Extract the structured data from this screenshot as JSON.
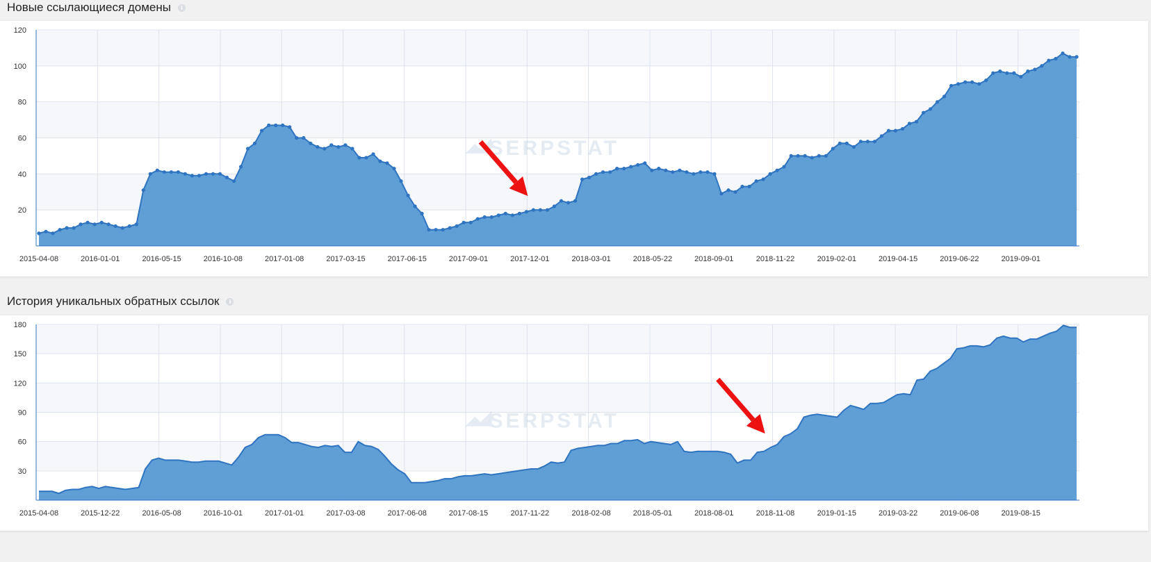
{
  "panels": [
    {
      "title": "Новые ссылающиеся домены",
      "info_icon": "info-icon"
    },
    {
      "title": "История уникальных обратных ссылок",
      "info_icon": "info-icon"
    }
  ],
  "watermark": "SERPSTAT",
  "colors": {
    "area": "#5b9bd5",
    "line": "#2f74c0",
    "arrow": "#ee1111",
    "grid": "#dde3ee"
  },
  "chart_data": [
    {
      "type": "area",
      "markers": true,
      "ylim": [
        0,
        120
      ],
      "yticks": [
        20,
        40,
        60,
        80,
        100,
        120
      ],
      "xticks": [
        "2015-04-08",
        "2016-01-01",
        "2016-05-15",
        "2016-10-08",
        "2017-01-08",
        "2017-03-15",
        "2017-06-15",
        "2017-09-01",
        "2017-12-01",
        "2018-03-01",
        "2018-05-22",
        "2018-09-01",
        "2018-11-22",
        "2019-02-01",
        "2019-04-15",
        "2019-06-22",
        "2019-09-01"
      ],
      "grid": true,
      "annotation": {
        "type": "arrow",
        "points_to_index": 71
      },
      "values": [
        7,
        8,
        7,
        9,
        10,
        10,
        12,
        13,
        12,
        13,
        12,
        11,
        10,
        11,
        12,
        31,
        40,
        42,
        41,
        41,
        41,
        40,
        39,
        39,
        40,
        40,
        40,
        38,
        36,
        44,
        54,
        57,
        64,
        67,
        67,
        67,
        66,
        60,
        60,
        57,
        55,
        54,
        56,
        55,
        56,
        54,
        49,
        49,
        51,
        47,
        46,
        43,
        36,
        28,
        22,
        18,
        9,
        9,
        9,
        10,
        11,
        13,
        13,
        15,
        16,
        16,
        17,
        18,
        17,
        18,
        19,
        20,
        20,
        20,
        22,
        25,
        24,
        25,
        37,
        38,
        40,
        41,
        41,
        43,
        43,
        44,
        45,
        46,
        42,
        43,
        42,
        41,
        42,
        41,
        40,
        41,
        41,
        40,
        29,
        31,
        30,
        33,
        33,
        36,
        37,
        40,
        42,
        44,
        50,
        50,
        50,
        49,
        50,
        50,
        54,
        57,
        57,
        55,
        58,
        58,
        58,
        61,
        64,
        64,
        65,
        68,
        69,
        74,
        76,
        80,
        83,
        89,
        90,
        91,
        91,
        90,
        92,
        96,
        97,
        96,
        96,
        94,
        97,
        98,
        100,
        103,
        104,
        107,
        105,
        105
      ]
    },
    {
      "type": "area",
      "markers": false,
      "ylim": [
        0,
        180
      ],
      "yticks": [
        30,
        60,
        90,
        120,
        150,
        180
      ],
      "xticks": [
        "2015-04-08",
        "2015-12-22",
        "2016-05-08",
        "2016-10-01",
        "2017-01-01",
        "2017-03-08",
        "2017-06-08",
        "2017-08-15",
        "2017-11-22",
        "2018-02-08",
        "2018-05-01",
        "2018-08-01",
        "2018-11-08",
        "2019-01-15",
        "2019-03-22",
        "2019-06-08",
        "2019-08-15"
      ],
      "grid": true,
      "annotation": {
        "type": "arrow",
        "points_to_index": 110
      },
      "values": [
        9,
        9,
        9,
        7,
        10,
        11,
        11,
        13,
        14,
        12,
        14,
        13,
        12,
        11,
        12,
        13,
        32,
        41,
        43,
        41,
        41,
        41,
        40,
        39,
        39,
        40,
        40,
        40,
        38,
        36,
        44,
        54,
        57,
        64,
        67,
        67,
        67,
        64,
        59,
        59,
        57,
        55,
        54,
        56,
        55,
        56,
        49,
        49,
        60,
        56,
        55,
        52,
        45,
        37,
        31,
        27,
        18,
        18,
        18,
        19,
        20,
        22,
        22,
        24,
        25,
        25,
        26,
        27,
        26,
        27,
        28,
        29,
        30,
        31,
        32,
        32,
        35,
        39,
        38,
        39,
        51,
        53,
        54,
        55,
        56,
        56,
        58,
        58,
        61,
        61,
        62,
        58,
        60,
        59,
        58,
        57,
        60,
        50,
        49,
        50,
        50,
        50,
        50,
        49,
        47,
        38,
        41,
        41,
        49,
        50,
        54,
        57,
        65,
        68,
        73,
        85,
        87,
        88,
        87,
        86,
        85,
        92,
        97,
        95,
        93,
        99,
        99,
        100,
        104,
        108,
        109,
        108,
        123,
        124,
        132,
        135,
        140,
        145,
        155,
        156,
        158,
        158,
        157,
        159,
        166,
        168,
        166,
        166,
        162,
        165,
        165,
        168,
        171,
        173,
        179,
        177,
        177
      ]
    }
  ]
}
